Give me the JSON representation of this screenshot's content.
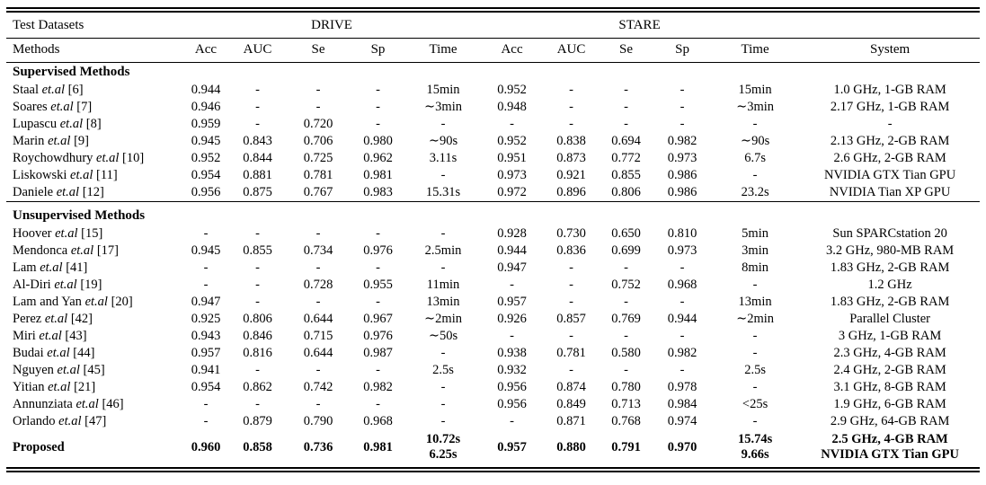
{
  "table": {
    "header": {
      "test_datasets_label": "Test Datasets",
      "drive_label": "DRIVE",
      "stare_label": "STARE",
      "methods_label": "Methods",
      "metric_columns": [
        "Acc",
        "AUC",
        "Se",
        "Sp",
        "Time"
      ],
      "system_label": "System"
    },
    "sections": [
      {
        "title": "Supervised Methods",
        "rows": [
          {
            "name": "Staal",
            "etal": "et.al",
            "ref": "[6]",
            "drive": [
              "0.944",
              "-",
              "-",
              "-",
              "15min"
            ],
            "stare": [
              "0.952",
              "-",
              "-",
              "-",
              "15min"
            ],
            "system": "1.0 GHz, 1-GB RAM"
          },
          {
            "name": "Soares",
            "etal": "et.al",
            "ref": "[7]",
            "drive": [
              "0.946",
              "-",
              "-",
              "-",
              "∼3min"
            ],
            "stare": [
              "0.948",
              "-",
              "-",
              "-",
              "∼3min"
            ],
            "system": "2.17 GHz, 1-GB RAM"
          },
          {
            "name": "Lupascu",
            "etal": "et.al",
            "ref": "[8]",
            "drive": [
              "0.959",
              "-",
              "0.720",
              "-",
              "-"
            ],
            "stare": [
              "-",
              "-",
              "-",
              "-",
              "-"
            ],
            "system": "-"
          },
          {
            "name": "Marin",
            "etal": "et.al",
            "ref": "[9]",
            "drive": [
              "0.945",
              "0.843",
              "0.706",
              "0.980",
              "∼90s"
            ],
            "stare": [
              "0.952",
              "0.838",
              "0.694",
              "0.982",
              "∼90s"
            ],
            "system": "2.13 GHz, 2-GB RAM"
          },
          {
            "name": "Roychowdhury",
            "etal": "et.al",
            "ref": "[10]",
            "drive": [
              "0.952",
              "0.844",
              "0.725",
              "0.962",
              "3.11s"
            ],
            "stare": [
              "0.951",
              "0.873",
              "0.772",
              "0.973",
              "6.7s"
            ],
            "system": "2.6 GHz, 2-GB RAM"
          },
          {
            "name": "Liskowski",
            "etal": "et.al",
            "ref": "[11]",
            "drive": [
              "0.954",
              "0.881",
              "0.781",
              "0.981",
              "-"
            ],
            "stare": [
              "0.973",
              "0.921",
              "0.855",
              "0.986",
              "-"
            ],
            "system": "NVIDIA GTX Tian GPU"
          },
          {
            "name": "Daniele",
            "etal": "et.al",
            "ref": "[12]",
            "drive": [
              "0.956",
              "0.875",
              "0.767",
              "0.983",
              "15.31s"
            ],
            "stare": [
              "0.972",
              "0.896",
              "0.806",
              "0.986",
              "23.2s"
            ],
            "system": "NVIDIA Tian XP GPU"
          }
        ]
      },
      {
        "title": "Unsupervised Methods",
        "rows": [
          {
            "name": "Hoover",
            "etal": "et.al",
            "ref": "[15]",
            "drive": [
              "-",
              "-",
              "-",
              "-",
              "-"
            ],
            "stare": [
              "0.928",
              "0.730",
              "0.650",
              "0.810",
              "5min"
            ],
            "system": "Sun SPARCstation 20"
          },
          {
            "name": "Mendonca",
            "etal": "et.al",
            "ref": "[17]",
            "drive": [
              "0.945",
              "0.855",
              "0.734",
              "0.976",
              "2.5min"
            ],
            "stare": [
              "0.944",
              "0.836",
              "0.699",
              "0.973",
              "3min"
            ],
            "system": "3.2 GHz, 980-MB RAM"
          },
          {
            "name": "Lam",
            "etal": "et.al",
            "ref": "[41]",
            "drive": [
              "-",
              "-",
              "-",
              "-",
              "-"
            ],
            "stare": [
              "0.947",
              "-",
              "-",
              "-",
              "8min"
            ],
            "system": "1.83 GHz, 2-GB RAM"
          },
          {
            "name": "Al-Diri",
            "etal": "et.al",
            "ref": "[19]",
            "drive": [
              "-",
              "-",
              "0.728",
              "0.955",
              "11min"
            ],
            "stare": [
              "-",
              "-",
              "0.752",
              "0.968",
              "-"
            ],
            "system": "1.2 GHz"
          },
          {
            "name": "Lam and Yan",
            "etal": "et.al",
            "ref": "[20]",
            "drive": [
              "0.947",
              "-",
              "-",
              "-",
              "13min"
            ],
            "stare": [
              "0.957",
              "-",
              "-",
              "-",
              "13min"
            ],
            "system": "1.83 GHz, 2-GB RAM"
          },
          {
            "name": "Perez",
            "etal": "et.al",
            "ref": "[42]",
            "drive": [
              "0.925",
              "0.806",
              "0.644",
              "0.967",
              "∼2min"
            ],
            "stare": [
              "0.926",
              "0.857",
              "0.769",
              "0.944",
              "∼2min"
            ],
            "system": "Parallel Cluster"
          },
          {
            "name": "Miri",
            "etal": "et.al",
            "ref": "[43]",
            "drive": [
              "0.943",
              "0.846",
              "0.715",
              "0.976",
              "∼50s"
            ],
            "stare": [
              "-",
              "-",
              "-",
              "-",
              "-"
            ],
            "system": "3 GHz, 1-GB RAM"
          },
          {
            "name": "Budai",
            "etal": "et.al",
            "ref": "[44]",
            "drive": [
              "0.957",
              "0.816",
              "0.644",
              "0.987",
              "-"
            ],
            "stare": [
              "0.938",
              "0.781",
              "0.580",
              "0.982",
              "-"
            ],
            "system": "2.3 GHz, 4-GB RAM"
          },
          {
            "name": "Nguyen",
            "etal": "et.al",
            "ref": "[45]",
            "drive": [
              "0.941",
              "-",
              "-",
              "-",
              "2.5s"
            ],
            "stare": [
              "0.932",
              "-",
              "-",
              "-",
              "2.5s"
            ],
            "system": "2.4 GHz, 2-GB RAM"
          },
          {
            "name": "Yitian",
            "etal": "et.al",
            "ref": "[21]",
            "drive": [
              "0.954",
              "0.862",
              "0.742",
              "0.982",
              "-"
            ],
            "stare": [
              "0.956",
              "0.874",
              "0.780",
              "0.978",
              "-"
            ],
            "system": "3.1 GHz, 8-GB RAM"
          },
          {
            "name": "Annunziata",
            "etal": "et.al",
            "ref": "[46]",
            "drive": [
              "-",
              "-",
              "-",
              "-",
              "-"
            ],
            "stare": [
              "0.956",
              "0.849",
              "0.713",
              "0.984",
              "<25s"
            ],
            "system": "1.9 GHz, 6-GB RAM"
          },
          {
            "name": "Orlando",
            "etal": "et.al",
            "ref": "[47]",
            "drive": [
              "-",
              "0.879",
              "0.790",
              "0.968",
              "-"
            ],
            "stare": [
              "-",
              "0.871",
              "0.768",
              "0.974",
              "-"
            ],
            "system": "2.9 GHz, 64-GB RAM"
          }
        ]
      }
    ],
    "proposed": {
      "label": "Proposed",
      "drive": [
        "0.960",
        "0.858",
        "0.736",
        "0.981"
      ],
      "drive_time": [
        "10.72s",
        "6.25s"
      ],
      "stare": [
        "0.957",
        "0.880",
        "0.791",
        "0.970"
      ],
      "stare_time": [
        "15.74s",
        "9.66s"
      ],
      "system": [
        "2.5 GHz, 4-GB RAM",
        "NVIDIA GTX Tian GPU"
      ]
    }
  }
}
